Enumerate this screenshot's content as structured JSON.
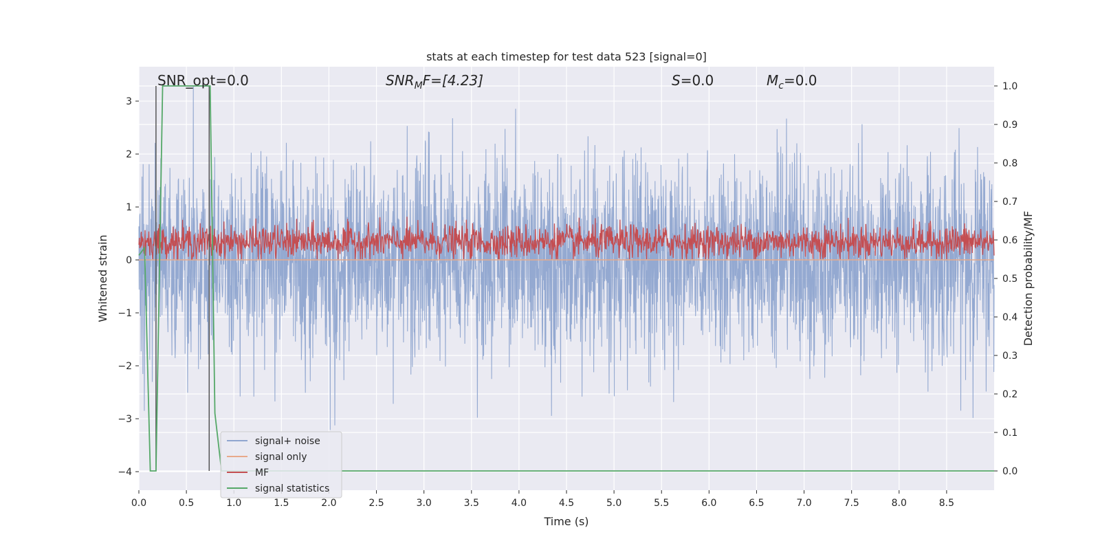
{
  "chart_data": {
    "type": "line",
    "title": "stats at each timestep for test data 523 [signal=0]",
    "xlabel": "Time (s)",
    "ylabel_left": "Whitened strain",
    "ylabel_right": "Detection probability/MF",
    "xlim": [
      0.0,
      9.0
    ],
    "ylim_left": [
      -4.35,
      3.65
    ],
    "ylim_right": [
      -0.05,
      1.05
    ],
    "x_ticks": [
      "0.0",
      "0.5",
      "1.0",
      "1.5",
      "2.0",
      "2.5",
      "3.0",
      "3.5",
      "4.0",
      "4.5",
      "5.0",
      "5.5",
      "6.0",
      "6.5",
      "7.0",
      "7.5",
      "8.0",
      "8.5"
    ],
    "y_ticks_left": [
      "3",
      "2",
      "1",
      "0",
      "−1",
      "−2",
      "−3",
      "−4"
    ],
    "y_ticks_right": [
      "1.0",
      "0.9",
      "0.8",
      "0.7",
      "0.6",
      "0.5",
      "0.4",
      "0.3",
      "0.2",
      "0.1",
      "0.0"
    ],
    "grid": true,
    "legend_position": "lower-left",
    "annotations": {
      "snr_opt": "SNR_opt=0.0",
      "snr_mf_base": "SNR",
      "snr_mf_sub": "M",
      "snr_mf_rest": "F=[4.23]",
      "s_base": "S",
      "s_rest": "=0.0",
      "mc_base": "M",
      "mc_sub": "c",
      "mc_rest": "=0.0"
    },
    "series": [
      {
        "name": "signal+ noise",
        "axis": "left",
        "color": "#8fa5cf",
        "description_values": "whitened noise, approx within [-3.6, 3.3]",
        "amplitude_range": [
          -3.6,
          3.3
        ]
      },
      {
        "name": "signal only",
        "axis": "left",
        "color": "#e8a98a",
        "x": [
          0.0,
          9.0
        ],
        "y": [
          0.0,
          0.0
        ]
      },
      {
        "name": "MF",
        "axis": "right",
        "color": "#c44e52",
        "amplitude_range": [
          0.55,
          0.7
        ]
      },
      {
        "name": "signal statistics",
        "axis": "right",
        "color": "#55a868",
        "x": [
          0.0,
          0.06,
          0.12,
          0.18,
          0.25,
          0.28,
          0.5,
          0.72,
          0.75,
          0.8,
          0.87,
          0.95,
          9.0
        ],
        "y": [
          0.56,
          0.58,
          0.0,
          0.0,
          1.0,
          1.0,
          1.0,
          1.0,
          1.0,
          0.15,
          0.0,
          0.0,
          0.0
        ]
      }
    ],
    "vlines": [
      {
        "x": 0.18,
        "y_right": [
          0.0,
          1.0
        ],
        "color": "#555555"
      },
      {
        "x": 0.74,
        "y_right": [
          0.0,
          1.0
        ],
        "color": "#555555"
      }
    ]
  }
}
